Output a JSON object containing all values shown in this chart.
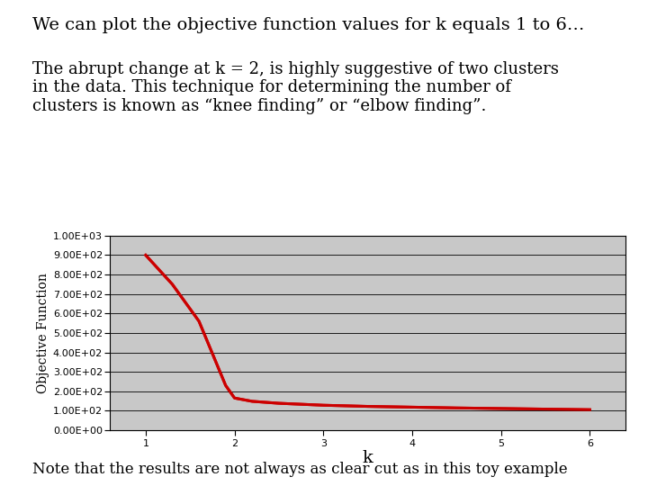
{
  "title_line1": "We can plot the objective function values for k equals 1 to 6…",
  "title_line2": "The abrupt change at k = 2, is highly suggestive of two clusters\nin the data. This technique for determining the number of\nclusters is known as “knee finding” or “elbow finding”.",
  "footer": "Note that the results are not always as clear cut as in this toy example",
  "x_values": [
    1,
    1.3,
    1.6,
    1.9,
    2.0,
    2.2,
    2.5,
    3.0,
    3.5,
    4.0,
    4.5,
    5.0,
    5.5,
    6.0
  ],
  "y_values": [
    900,
    750,
    560,
    230,
    165,
    148,
    138,
    128,
    122,
    118,
    114,
    111,
    108,
    105
  ],
  "xlabel": "k",
  "ylabel": "Objective Function",
  "ylim": [
    0,
    1000
  ],
  "xlim": [
    0.6,
    6.4
  ],
  "yticks": [
    0,
    100,
    200,
    300,
    400,
    500,
    600,
    700,
    800,
    900,
    1000
  ],
  "xticks": [
    1,
    2,
    3,
    4,
    5,
    6
  ],
  "line_color": "#cc0000",
  "line_width": 2.2,
  "plot_bg": "#c8c8c8",
  "chart_border_color": "#000000",
  "text_color": "#000000",
  "title_fontsize": 14,
  "subtitle_fontsize": 13,
  "footer_fontsize": 12,
  "axis_fontsize": 10,
  "tick_fontsize": 8,
  "ylabel_fontsize": 10
}
